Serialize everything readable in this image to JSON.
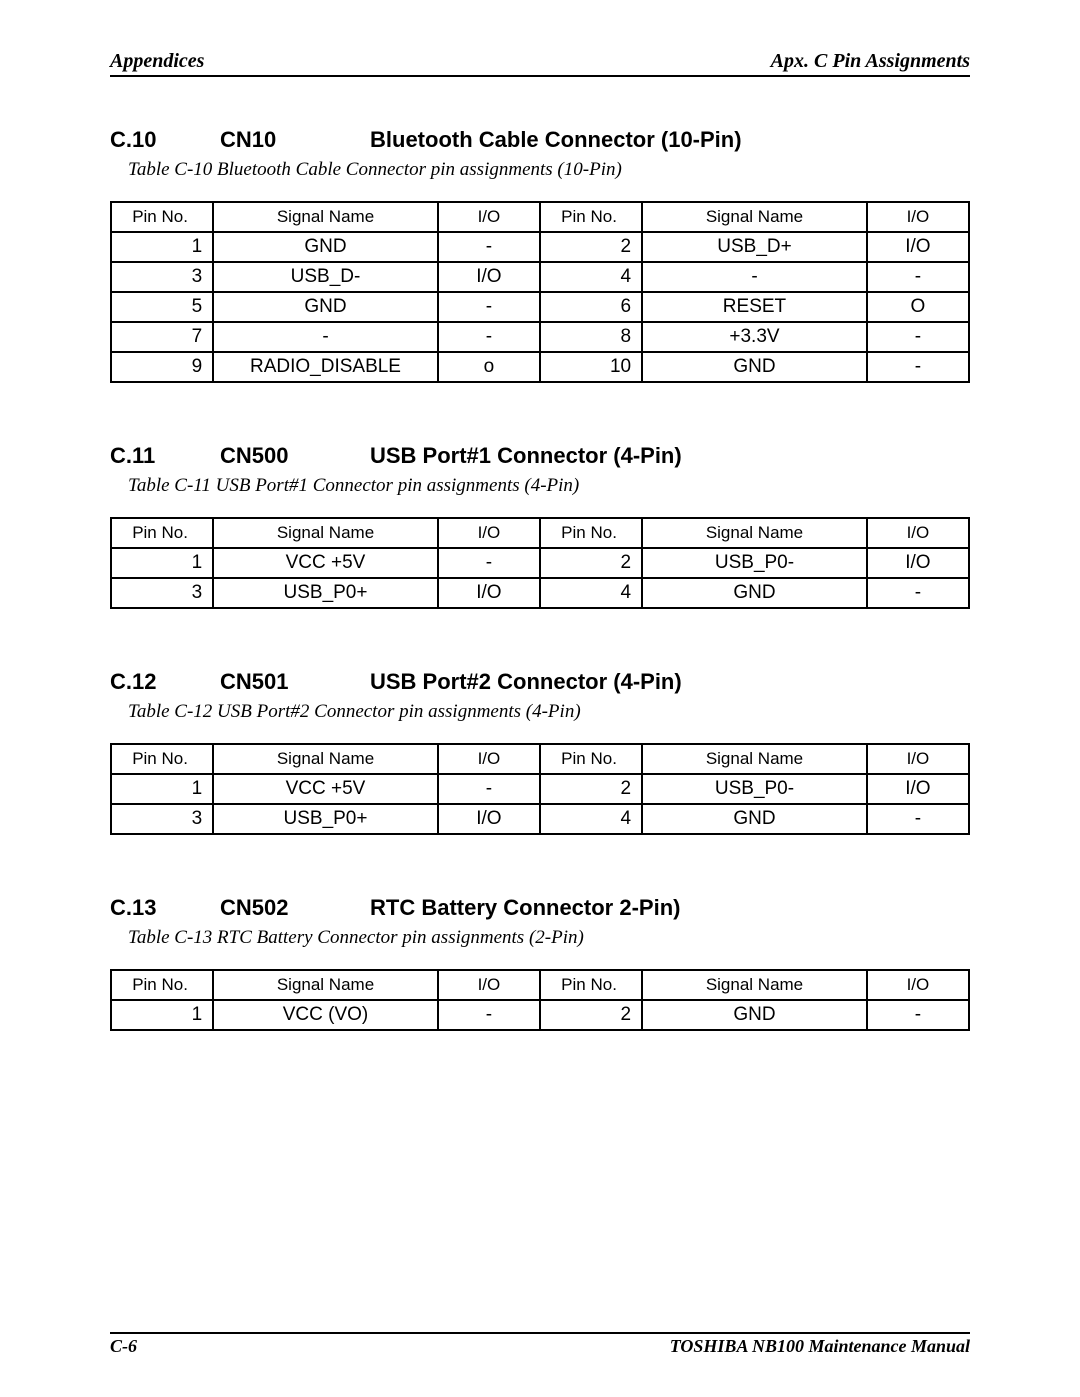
{
  "header": {
    "left": "Appendices",
    "right": "Apx. C  Pin Assignments"
  },
  "sections": [
    {
      "num": "C.10",
      "conn": "CN10",
      "title": "Bluetooth Cable Connector (10-Pin)",
      "caption": "Table C-10  Bluetooth Cable Connector pin assignments (10-Pin)",
      "headers": [
        "Pin No.",
        "Signal Name",
        "I/O",
        "Pin No.",
        "Signal Name",
        "I/O"
      ],
      "rows": [
        [
          "1",
          "GND",
          "-",
          "2",
          "USB_D+",
          "I/O"
        ],
        [
          "3",
          "USB_D-",
          "I/O",
          "4",
          "-",
          "-"
        ],
        [
          "5",
          "GND",
          "-",
          "6",
          "RESET",
          "O"
        ],
        [
          "7",
          "-",
          "-",
          "8",
          "+3.3V",
          "-"
        ],
        [
          "9",
          "RADIO_DISABLE",
          "o",
          "10",
          "GND",
          "-"
        ]
      ]
    },
    {
      "num": "C.11",
      "conn": "CN500",
      "title": "USB Port#1 Connector (4-Pin)",
      "caption": "Table C-11   USB Port#1 Connector pin assignments (4-Pin)",
      "headers": [
        "Pin No.",
        "Signal Name",
        "I/O",
        "Pin No.",
        "Signal Name",
        "I/O"
      ],
      "rows": [
        [
          "1",
          "VCC +5V",
          "-",
          "2",
          "USB_P0-",
          "I/O"
        ],
        [
          "3",
          "USB_P0+",
          "I/O",
          "4",
          "GND",
          "-"
        ]
      ]
    },
    {
      "num": "C.12",
      "conn": "CN501",
      "title": "USB Port#2 Connector (4-Pin)",
      "caption": "Table C-12   USB Port#2 Connector pin assignments (4-Pin)",
      "headers": [
        "Pin No.",
        "Signal Name",
        "I/O",
        "Pin No.",
        "Signal Name",
        "I/O"
      ],
      "rows": [
        [
          "1",
          "VCC +5V",
          "-",
          "2",
          "USB_P0-",
          "I/O"
        ],
        [
          "3",
          "USB_P0+",
          "I/O",
          "4",
          "GND",
          "-"
        ]
      ]
    },
    {
      "num": "C.13",
      "conn": "CN502",
      "title": "RTC Battery Connector 2-Pin)",
      "caption": "Table C-13   RTC Battery Connector pin assignments (2-Pin)",
      "headers": [
        "Pin No.",
        "Signal Name",
        "I/O",
        "Pin No.",
        "Signal Name",
        "I/O"
      ],
      "rows": [
        [
          "1",
          "VCC (VO)",
          "-",
          "2",
          "GND",
          "-"
        ]
      ]
    }
  ],
  "footer": {
    "left": "C-6",
    "right": "TOSHIBA NB100  Maintenance Manual"
  }
}
